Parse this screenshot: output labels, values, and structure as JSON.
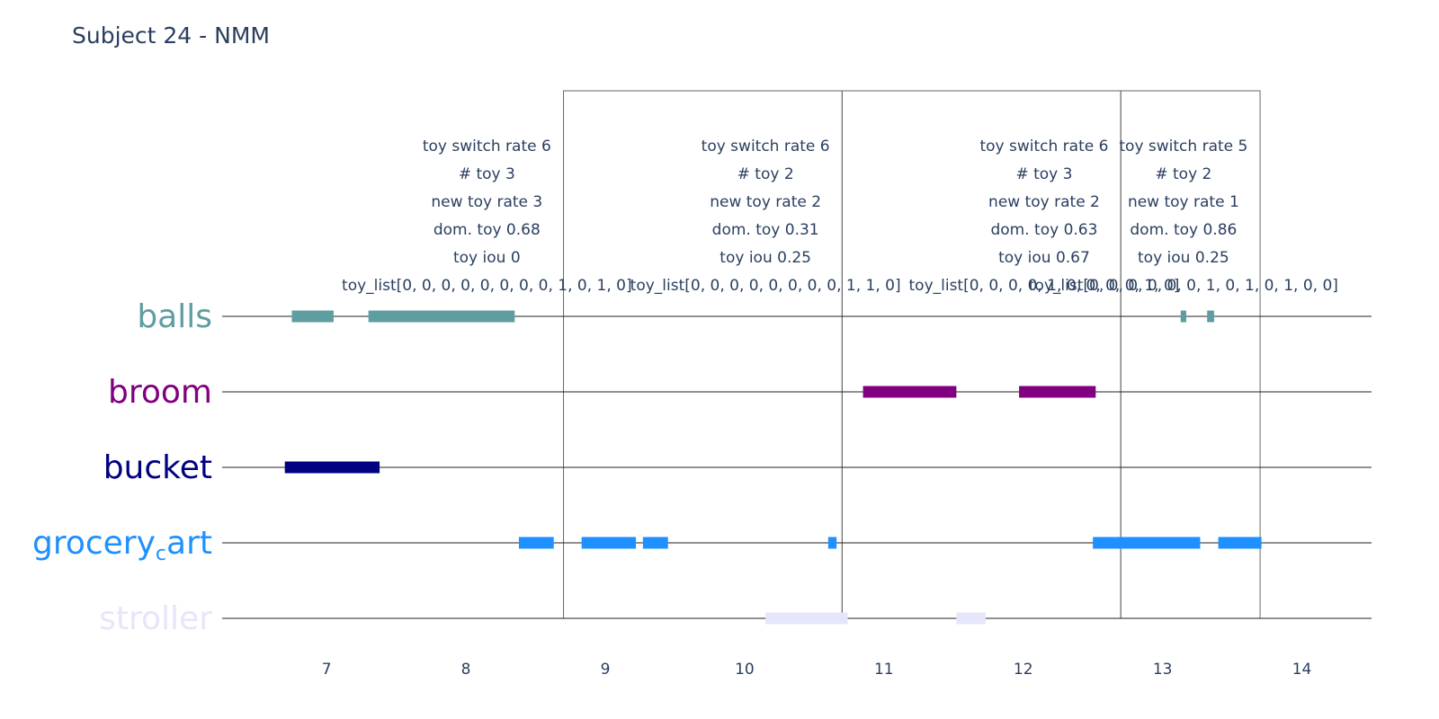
{
  "chart_data": {
    "type": "timeline",
    "title": "Subject 24 - NMM",
    "xlim": [
      6.25,
      14.5
    ],
    "x_ticks": [
      7,
      8,
      9,
      10,
      11,
      12,
      13,
      14
    ],
    "x_tick_labels": [
      "7",
      "8",
      "9",
      "10",
      "11",
      "12",
      "13",
      "14"
    ],
    "toys": [
      {
        "name": "balls",
        "label": "balls",
        "color": "#5f9ea0",
        "intervals": [
          [
            6.75,
            7.05
          ],
          [
            7.3,
            8.35
          ],
          [
            13.13,
            13.17
          ],
          [
            13.32,
            13.37
          ]
        ]
      },
      {
        "name": "broom",
        "label": "broom",
        "color": "#800080",
        "intervals": [
          [
            10.85,
            11.52
          ],
          [
            11.97,
            12.52
          ]
        ]
      },
      {
        "name": "bucket",
        "label": "bucket",
        "color": "#000080",
        "intervals": [
          [
            6.7,
            7.38
          ]
        ]
      },
      {
        "name": "grocery_cart",
        "label": "grocery",
        "label_sub": "c",
        "label_end": "art",
        "color": "#1e90ff",
        "intervals": [
          [
            8.38,
            8.63
          ],
          [
            8.83,
            9.22
          ],
          [
            9.27,
            9.45
          ],
          [
            10.6,
            10.66
          ],
          [
            12.5,
            13.27
          ],
          [
            13.4,
            13.71
          ]
        ]
      },
      {
        "name": "stroller",
        "label": "stroller",
        "color": "#e6e6fa",
        "intervals": [
          [
            10.15,
            10.74
          ],
          [
            11.52,
            11.73
          ]
        ]
      }
    ],
    "windows": [
      [
        8.7,
        10.7
      ],
      [
        10.7,
        12.7
      ],
      [
        12.7,
        13.7
      ]
    ],
    "annotations": [
      {
        "x": 8.15,
        "lines": [
          "toy switch rate 6",
          "# toy 3",
          "new toy rate 3",
          "dom. toy 0.68",
          "toy iou 0",
          "toy_list[0, 0, 0, 0, 0, 0, 0, 0, 1, 0, 1, 0]"
        ]
      },
      {
        "x": 10.15,
        "lines": [
          "toy switch rate 6",
          "# toy 2",
          "new toy rate 2",
          "dom. toy 0.31",
          "toy iou 0.25",
          "toy_list[0, 0, 0, 0, 0, 0, 0, 0, 1, 1, 0]"
        ]
      },
      {
        "x": 12.15,
        "lines": [
          "toy switch rate 6",
          "# toy 3",
          "new toy rate 2",
          "dom. toy 0.63",
          "toy iou 0.67",
          "toy_list[0, 0, 0, 0, 1, 0, 0, 0, 0, 1, 0]"
        ]
      },
      {
        "x": 13.15,
        "lines": [
          "toy switch rate 5",
          "# toy 2",
          "new toy rate 1",
          "dom. toy 0.86",
          "toy iou 0.25",
          "toy_list[0, 0, 0, 0, 0, 0, 1, 0, 1, 0, 1, 0, 0]"
        ]
      }
    ]
  }
}
